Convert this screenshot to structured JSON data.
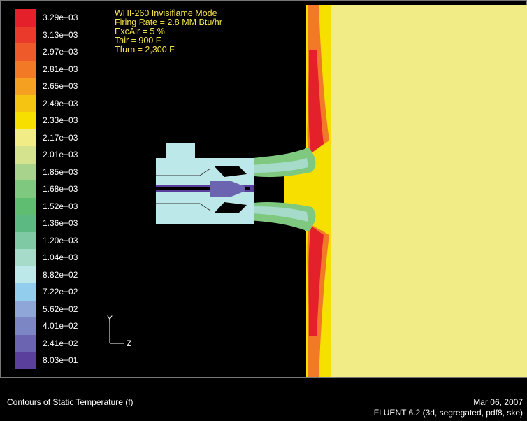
{
  "legend": {
    "labels": [
      "3.29e+03",
      "3.13e+03",
      "2.97e+03",
      "2.81e+03",
      "2.65e+03",
      "2.49e+03",
      "2.33e+03",
      "2.17e+03",
      "2.01e+03",
      "1.85e+03",
      "1.68e+03",
      "1.52e+03",
      "1.36e+03",
      "1.20e+03",
      "1.04e+03",
      "8.82e+02",
      "7.22e+02",
      "5.62e+02",
      "4.01e+02",
      "2.41e+02",
      "8.03e+01"
    ],
    "colors": [
      "#e4202a",
      "#ea3a2c",
      "#ef5a2a",
      "#f27a26",
      "#f5a020",
      "#f5c412",
      "#f7e000",
      "#f2ec86",
      "#d6e38e",
      "#a8d38c",
      "#7ec87f",
      "#5fbd72",
      "#5db982",
      "#7fcaa4",
      "#a6dbc9",
      "#bde8ea",
      "#93cdee",
      "#8fa6d8",
      "#7d86c4",
      "#6b64b0",
      "#5b3f9d"
    ]
  },
  "info": {
    "line1": "WHI-260  Invisiflame Mode",
    "line2": "Firing Rate = 2.8 MM Btu/hr",
    "line3": "ExcAir = 5 %",
    "line4": "Tair = 900 F",
    "line5": "Tfurn = 2,300 F"
  },
  "axes": {
    "y": "Y",
    "z": "Z"
  },
  "footer": {
    "title": "Contours of Static Temperature (f)",
    "date": "Mar 06, 2007",
    "solver": "FLUENT 6.2 (3d, segregated, pdf8, ske)"
  },
  "colors": {
    "furnace": "#f2ec86",
    "air": "#bde8ea",
    "wall_red": "#e4202a",
    "wall_orange": "#f5a020",
    "wall_yellow": "#f7e000",
    "flame_green": "#7ec87f",
    "dark": "#5b3f9d"
  }
}
